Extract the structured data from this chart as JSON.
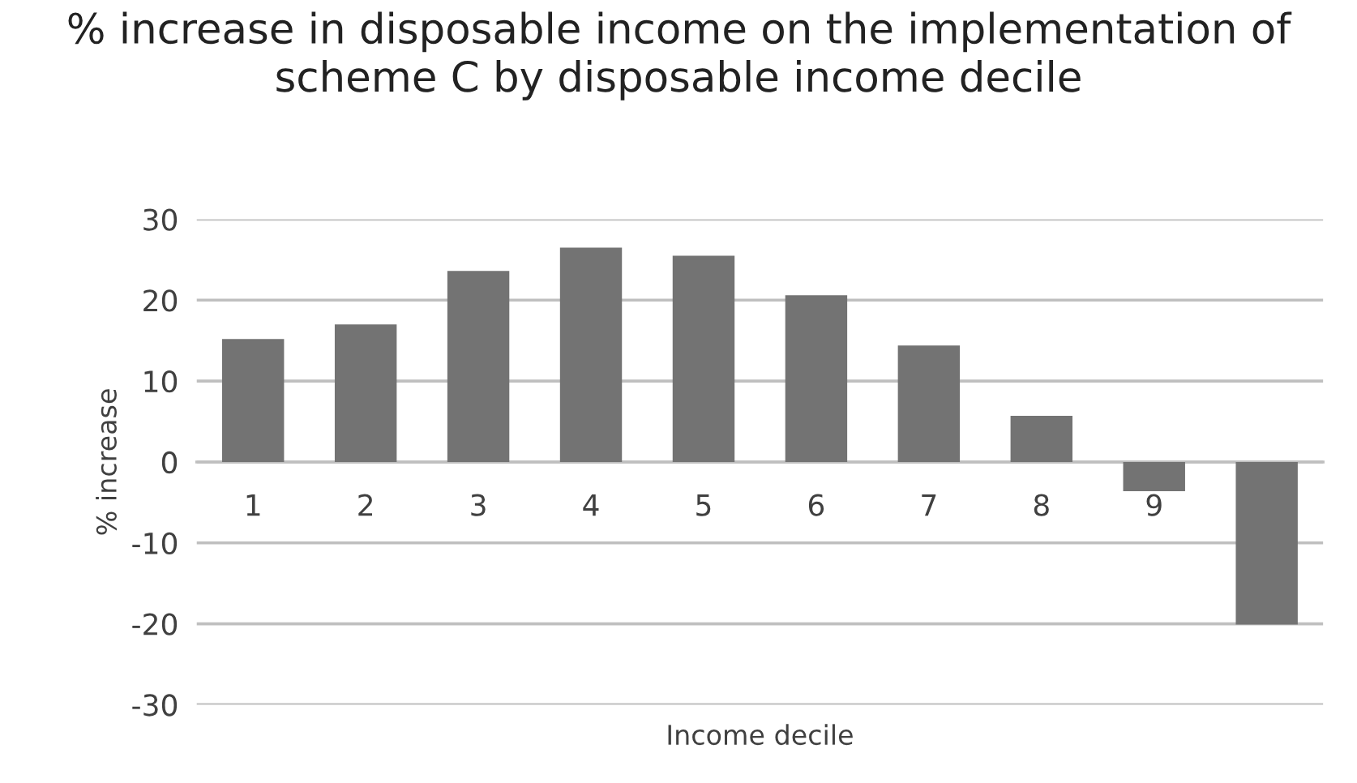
{
  "chart_data": {
    "type": "bar",
    "title": "% increase in disposable income on the implementation of scheme C by disposable income decile",
    "xlabel": "Income decile",
    "ylabel": "% increase",
    "categories": [
      "1",
      "2",
      "3",
      "4",
      "5",
      "6",
      "7",
      "8",
      "9",
      null
    ],
    "values": [
      15.2,
      17.0,
      23.6,
      26.5,
      25.5,
      20.6,
      14.4,
      5.7,
      -3.6,
      -20.1
    ],
    "color": "#737373",
    "ylim": [
      -30,
      30
    ],
    "yticks": [
      -30,
      -20,
      -10,
      0,
      10,
      20,
      30
    ],
    "grid": "y",
    "legend": false
  }
}
